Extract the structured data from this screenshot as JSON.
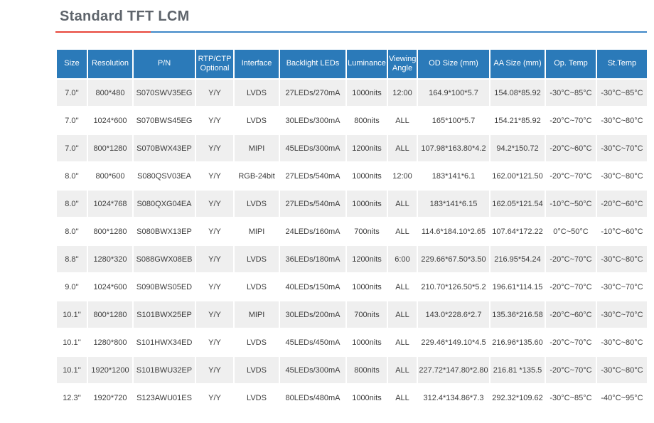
{
  "page": {
    "title": "Standard TFT LCM"
  },
  "accent": {
    "header_blue": "#2b7ab9",
    "underline_red": "#e8463a",
    "underline_blue": "#3e87c7",
    "row_stripe_gray": "#efefef",
    "title_gray": "#5e646b"
  },
  "table": {
    "columns": [
      "Size",
      "Resolution",
      "P/N",
      "RTP/CTP Optional",
      "Interface",
      "Backlight LEDs",
      "Luminance",
      "Viewing Angle",
      "OD Size (mm)",
      "AA Size (mm)",
      "Op. Temp",
      "St.Temp"
    ],
    "rows": [
      [
        "7.0''",
        "800*480",
        "S070SWV35EG",
        "Y/Y",
        "LVDS",
        "27LEDs/270mA",
        "1000nits",
        "12:00",
        "164.9*100*5.7",
        "154.08*85.92",
        "-30°C~85°C",
        "-30°C~85°C"
      ],
      [
        "7.0''",
        "1024*600",
        "S070BWS45EG",
        "Y/Y",
        "LVDS",
        "30LEDs/300mA",
        "800nits",
        "ALL",
        "165*100*5.7",
        "154.21*85.92",
        "-20°C~70°C",
        "-30°C~80°C"
      ],
      [
        "7.0''",
        "800*1280",
        "S070BWX43EP",
        "Y/Y",
        "MIPI",
        "45LEDs/300mA",
        "1200nits",
        "ALL",
        "107.98*163.80*4.2",
        "94.2*150.72",
        "-20°C~60°C",
        "-30°C~70°C"
      ],
      [
        "8.0''",
        "800*600",
        "S080QSV03EA",
        "Y/Y",
        "RGB-24bit",
        "27LEDs/540mA",
        "1000nits",
        "12:00",
        "183*141*6.1",
        "162.00*121.50",
        "-20°C~70°C",
        "-30°C~80°C"
      ],
      [
        "8.0''",
        "1024*768",
        "S080QXG04EA",
        "Y/Y",
        "LVDS",
        "27LEDs/540mA",
        "1000nits",
        "ALL",
        "183*141*6.15",
        "162.05*121.54",
        "-10°C~50°C",
        "-20°C~60°C"
      ],
      [
        "8.0''",
        "800*1280",
        "S080BWX13EP",
        "Y/Y",
        "MIPI",
        "24LEDs/160mA",
        "700nits",
        "ALL",
        "114.6*184.10*2.65",
        "107.64*172.22",
        "0°C~50°C",
        "-10°C~60°C"
      ],
      [
        "8.8''",
        "1280*320",
        "S088GWX08EB",
        "Y/Y",
        "LVDS",
        "36LEDs/180mA",
        "1200nits",
        "6:00",
        "229.66*67.50*3.50",
        "216.95*54.24",
        "-20°C~70°C",
        "-30°C~80°C"
      ],
      [
        "9.0''",
        "1024*600",
        "S090BWS05ED",
        "Y/Y",
        "LVDS",
        "40LEDs/150mA",
        "1000nits",
        "ALL",
        "210.70*126.50*5.2",
        "196.61*114.15",
        "-20°C~70°C",
        "-30°C~70°C"
      ],
      [
        "10.1''",
        "800*1280",
        "S101BWX25EP",
        "Y/Y",
        "MIPI",
        "30LEDs/200mA",
        "700nits",
        "ALL",
        "143.0*228.6*2.7",
        "135.36*216.58",
        "-20°C~60°C",
        "-30°C~70°C"
      ],
      [
        "10.1''",
        "1280*800",
        "S101HWX34ED",
        "Y/Y",
        "LVDS",
        "45LEDs/450mA",
        "1000nits",
        "ALL",
        "229.46*149.10*4.5",
        "216.96*135.60",
        "-20°C~70°C",
        "-30°C~80°C"
      ],
      [
        "10.1''",
        "1920*1200",
        "S101BWU32EP",
        "Y/Y",
        "LVDS",
        "45LEDs/300mA",
        "800nits",
        "ALL",
        "227.72*147.80*2.80",
        "216.81 *135.5",
        "-20°C~70°C",
        "-30°C~80°C"
      ],
      [
        "12.3''",
        "1920*720",
        "S123AWU01ES",
        "Y/Y",
        "LVDS",
        "80LEDs/480mA",
        "1000nits",
        "ALL",
        "312.4*134.86*7.3",
        "292.32*109.62",
        "-30°C~85°C",
        "-40°C~95°C"
      ]
    ]
  }
}
